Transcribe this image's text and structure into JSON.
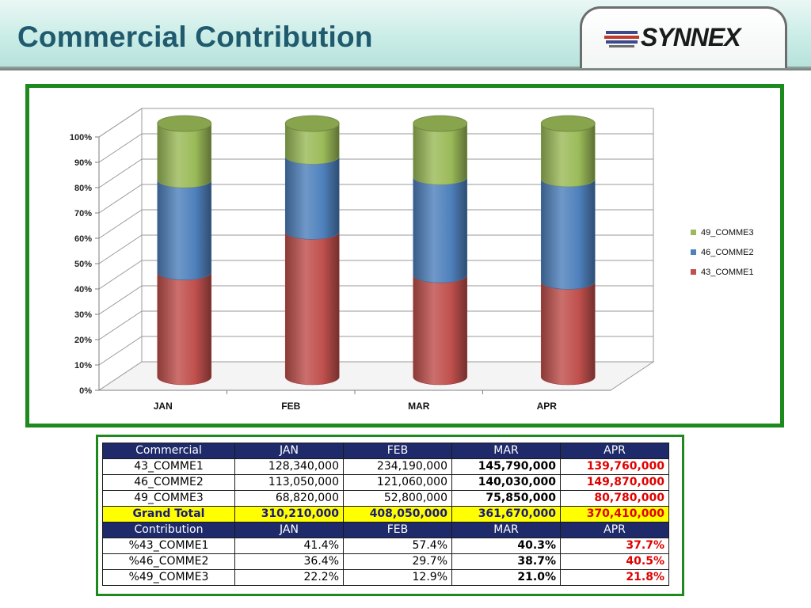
{
  "header": {
    "title": "Commercial Contribution",
    "logo_text": "SYNNEX"
  },
  "colors": {
    "comme1": "#c0504d",
    "comme2": "#4f81bd",
    "comme3": "#9bbb59",
    "frame": "#1c8a1c",
    "table_header": "#1f2a6b",
    "highlight": "#ffff00",
    "red": "#e00000"
  },
  "chart_data": {
    "type": "bar",
    "stacked": "100%",
    "shape": "cylinder",
    "categories": [
      "JAN",
      "FEB",
      "MAR",
      "APR"
    ],
    "series": [
      {
        "name": "43_COMME1",
        "values": [
          41.4,
          57.4,
          40.3,
          37.7
        ]
      },
      {
        "name": "46_COMME2",
        "values": [
          36.4,
          29.7,
          38.7,
          40.5
        ]
      },
      {
        "name": "49_COMME3",
        "values": [
          22.2,
          12.9,
          21.0,
          21.8
        ]
      }
    ],
    "ylim": [
      0,
      100
    ],
    "yticks": [
      "0%",
      "10%",
      "20%",
      "30%",
      "40%",
      "50%",
      "60%",
      "70%",
      "80%",
      "90%",
      "100%"
    ],
    "legend": [
      "49_COMME3",
      "46_COMME2",
      "43_COMME1"
    ],
    "legend_position": "right",
    "grid": true
  },
  "table": {
    "amount_header": [
      "Commercial",
      "JAN",
      "FEB",
      "MAR",
      "APR"
    ],
    "amount_rows": [
      {
        "label": "43_COMME1",
        "values": [
          "128,340,000",
          "234,190,000",
          "145,790,000",
          "139,760,000"
        ]
      },
      {
        "label": "46_COMME2",
        "values": [
          "113,050,000",
          "121,060,000",
          "140,030,000",
          "149,870,000"
        ]
      },
      {
        "label": "49_COMME3",
        "values": [
          "68,820,000",
          "52,800,000",
          "75,850,000",
          "80,780,000"
        ]
      }
    ],
    "total_row": {
      "label": "Grand Total",
      "values": [
        "310,210,000",
        "408,050,000",
        "361,670,000",
        "370,410,000"
      ]
    },
    "contribution_header": [
      "Contribution",
      "JAN",
      "FEB",
      "MAR",
      "APR"
    ],
    "contribution_rows": [
      {
        "label": "%43_COMME1",
        "values": [
          "41.4%",
          "57.4%",
          "40.3%",
          "37.7%"
        ]
      },
      {
        "label": "%46_COMME2",
        "values": [
          "36.4%",
          "29.7%",
          "38.7%",
          "40.5%"
        ]
      },
      {
        "label": "%49_COMME3",
        "values": [
          "22.2%",
          "12.9%",
          "21.0%",
          "21.8%"
        ]
      }
    ]
  }
}
